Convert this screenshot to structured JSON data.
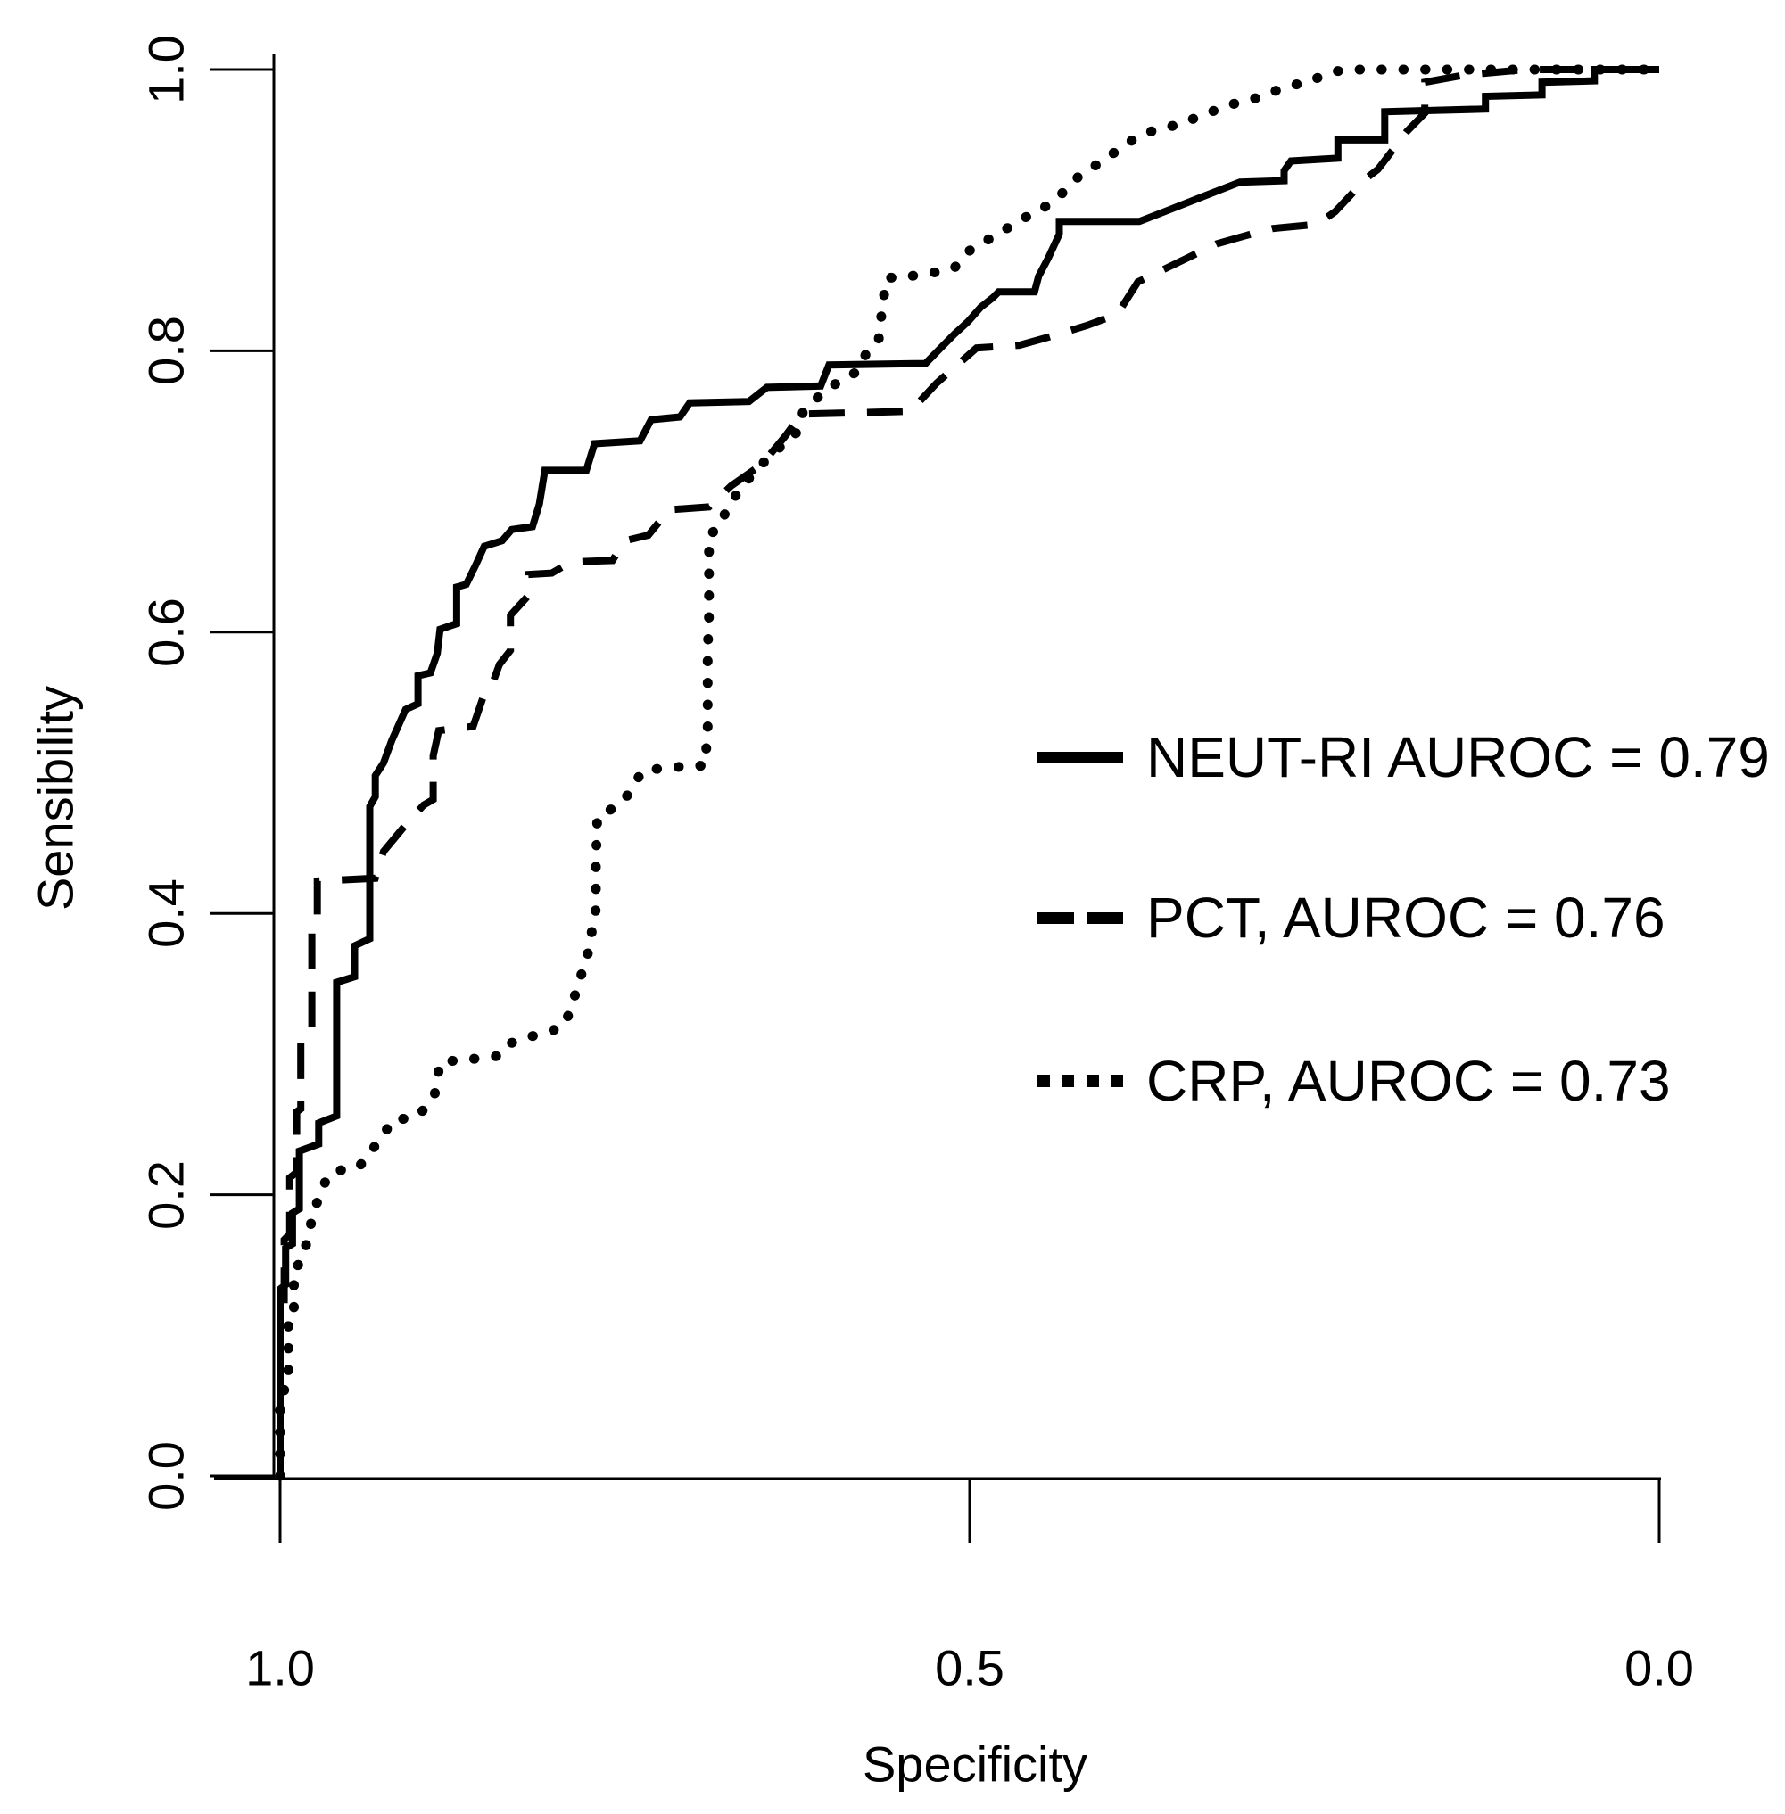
{
  "figure": {
    "background_color": "#ffffff",
    "ink_color": "#000000"
  },
  "axes": {
    "x_label": "Specificity",
    "y_label": "Sensibility",
    "x_tick_labels": [
      "1.0",
      "0.5",
      "0.0"
    ],
    "y_tick_labels": [
      "0.0",
      "0.2",
      "0.4",
      "0.6",
      "0.8",
      "1.0"
    ]
  },
  "legend": {
    "items": [
      {
        "series": "NEUT-RI",
        "label": "NEUT-RI AUROC = 0.79",
        "line_style": "solid"
      },
      {
        "series": "PCT",
        "label": "PCT, AUROC = 0.76",
        "line_style": "dashed"
      },
      {
        "series": "CRP",
        "label": "CRP, AUROC = 0.73",
        "line_style": "dotted"
      }
    ]
  },
  "chart_data": {
    "type": "line",
    "subtype": "roc-curves",
    "title": "",
    "xlabel": "Specificity",
    "ylabel": "Sensibility",
    "x_axis": {
      "range": [
        1.0,
        0.0
      ],
      "ticks": [
        1.0,
        0.5,
        0.0
      ],
      "direction": "reversed"
    },
    "y_axis": {
      "range": [
        0.0,
        1.0
      ],
      "ticks": [
        0.0,
        0.2,
        0.4,
        0.6,
        0.8,
        1.0
      ]
    },
    "grid": false,
    "legend_position": "center-right",
    "series": [
      {
        "name": "NEUT-RI",
        "auroc": 0.79,
        "legend_label": "NEUT-RI AUROC = 0.79",
        "line_style": "solid",
        "points": [
          [
            1,
            0
          ],
          [
            1,
            0.133
          ],
          [
            0.996,
            0.136
          ],
          [
            0.996,
            0.162
          ],
          [
            0.991,
            0.165
          ],
          [
            0.991,
            0.187
          ],
          [
            0.986,
            0.19
          ],
          [
            0.986,
            0.231
          ],
          [
            0.972,
            0.236
          ],
          [
            0.972,
            0.251
          ],
          [
            0.959,
            0.256
          ],
          [
            0.959,
            0.351
          ],
          [
            0.946,
            0.355
          ],
          [
            0.946,
            0.377
          ],
          [
            0.935,
            0.382
          ],
          [
            0.935,
            0.476
          ],
          [
            0.931,
            0.483
          ],
          [
            0.931,
            0.498
          ],
          [
            0.925,
            0.507
          ],
          [
            0.919,
            0.523
          ],
          [
            0.909,
            0.545
          ],
          [
            0.9,
            0.549
          ],
          [
            0.9,
            0.569
          ],
          [
            0.891,
            0.571
          ],
          [
            0.886,
            0.585
          ],
          [
            0.884,
            0.602
          ],
          [
            0.872,
            0.606
          ],
          [
            0.872,
            0.632
          ],
          [
            0.865,
            0.634
          ],
          [
            0.858,
            0.648
          ],
          [
            0.852,
            0.661
          ],
          [
            0.839,
            0.665
          ],
          [
            0.832,
            0.673
          ],
          [
            0.817,
            0.675
          ],
          [
            0.812,
            0.691
          ],
          [
            0.808,
            0.715
          ],
          [
            0.778,
            0.715
          ],
          [
            0.772,
            0.734
          ],
          [
            0.739,
            0.736
          ],
          [
            0.731,
            0.751
          ],
          [
            0.71,
            0.753
          ],
          [
            0.703,
            0.763
          ],
          [
            0.66,
            0.764
          ],
          [
            0.647,
            0.774
          ],
          [
            0.608,
            0.775
          ],
          [
            0.602,
            0.79
          ],
          [
            0.532,
            0.791
          ],
          [
            0.521,
            0.802
          ],
          [
            0.511,
            0.812
          ],
          [
            0.501,
            0.821
          ],
          [
            0.492,
            0.831
          ],
          [
            0.483,
            0.838
          ],
          [
            0.479,
            0.842
          ],
          [
            0.453,
            0.842
          ],
          [
            0.45,
            0.853
          ],
          [
            0.443,
            0.866
          ],
          [
            0.435,
            0.883
          ],
          [
            0.435,
            0.892
          ],
          [
            0.377,
            0.892
          ],
          [
            0.356,
            0.9
          ],
          [
            0.33,
            0.91
          ],
          [
            0.304,
            0.92
          ],
          [
            0.272,
            0.921
          ],
          [
            0.272,
            0.928
          ],
          [
            0.267,
            0.935
          ],
          [
            0.233,
            0.937
          ],
          [
            0.233,
            0.95
          ],
          [
            0.199,
            0.95
          ],
          [
            0.199,
            0.97
          ],
          [
            0.126,
            0.972
          ],
          [
            0.126,
            0.981
          ],
          [
            0.085,
            0.982
          ],
          [
            0.085,
            0.991
          ],
          [
            0.047,
            0.992
          ],
          [
            0.047,
            1
          ],
          [
            0,
            1
          ]
        ]
      },
      {
        "name": "PCT",
        "auroc": 0.76,
        "legend_label": "PCT, AUROC = 0.76",
        "line_style": "dashed",
        "points": [
          [
            1,
            0
          ],
          [
            1,
            0.117
          ],
          [
            0.997,
            0.122
          ],
          [
            0.997,
            0.168
          ],
          [
            0.993,
            0.172
          ],
          [
            0.993,
            0.212
          ],
          [
            0.988,
            0.216
          ],
          [
            0.988,
            0.259
          ],
          [
            0.985,
            0.261
          ],
          [
            0.985,
            0.314
          ],
          [
            0.977,
            0.319
          ],
          [
            0.977,
            0.394
          ],
          [
            0.973,
            0.396
          ],
          [
            0.973,
            0.423
          ],
          [
            0.931,
            0.425
          ],
          [
            0.925,
            0.444
          ],
          [
            0.909,
            0.463
          ],
          [
            0.896,
            0.477
          ],
          [
            0.889,
            0.481
          ],
          [
            0.889,
            0.512
          ],
          [
            0.885,
            0.53
          ],
          [
            0.86,
            0.533
          ],
          [
            0.852,
            0.556
          ],
          [
            0.845,
            0.566
          ],
          [
            0.841,
            0.577
          ],
          [
            0.833,
            0.587
          ],
          [
            0.833,
            0.612
          ],
          [
            0.82,
            0.626
          ],
          [
            0.82,
            0.641
          ],
          [
            0.803,
            0.642
          ],
          [
            0.789,
            0.65
          ],
          [
            0.759,
            0.651
          ],
          [
            0.75,
            0.665
          ],
          [
            0.733,
            0.669
          ],
          [
            0.718,
            0.687
          ],
          [
            0.689,
            0.689
          ],
          [
            0.673,
            0.704
          ],
          [
            0.651,
            0.719
          ],
          [
            0.634,
            0.739
          ],
          [
            0.622,
            0.755
          ],
          [
            0.543,
            0.757
          ],
          [
            0.524,
            0.777
          ],
          [
            0.495,
            0.802
          ],
          [
            0.464,
            0.804
          ],
          [
            0.442,
            0.81
          ],
          [
            0.415,
            0.818
          ],
          [
            0.393,
            0.826
          ],
          [
            0.378,
            0.849
          ],
          [
            0.321,
            0.876
          ],
          [
            0.296,
            0.883
          ],
          [
            0.28,
            0.887
          ],
          [
            0.248,
            0.89
          ],
          [
            0.235,
            0.899
          ],
          [
            0.212,
            0.923
          ],
          [
            0.204,
            0.929
          ],
          [
            0.183,
            0.956
          ],
          [
            0.17,
            0.969
          ],
          [
            0.17,
            0.991
          ],
          [
            0.142,
            0.996
          ],
          [
            0.097,
            1
          ],
          [
            0,
            1
          ]
        ]
      },
      {
        "name": "CRP",
        "auroc": 0.73,
        "legend_label": "CRP, AUROC = 0.73",
        "line_style": "dotted",
        "points": [
          [
            1,
            0
          ],
          [
            1,
            0.048
          ],
          [
            0.997,
            0.051
          ],
          [
            0.997,
            0.07
          ],
          [
            0.994,
            0.073
          ],
          [
            0.994,
            0.111
          ],
          [
            0.99,
            0.114
          ],
          [
            0.99,
            0.147
          ],
          [
            0.985,
            0.152
          ],
          [
            0.98,
            0.168
          ],
          [
            0.976,
            0.187
          ],
          [
            0.97,
            0.203
          ],
          [
            0.965,
            0.214
          ],
          [
            0.959,
            0.217
          ],
          [
            0.944,
            0.219
          ],
          [
            0.938,
            0.225
          ],
          [
            0.931,
            0.235
          ],
          [
            0.924,
            0.244
          ],
          [
            0.919,
            0.253
          ],
          [
            0.902,
            0.255
          ],
          [
            0.893,
            0.263
          ],
          [
            0.888,
            0.271
          ],
          [
            0.884,
            0.294
          ],
          [
            0.869,
            0.296
          ],
          [
            0.854,
            0.297
          ],
          [
            0.84,
            0.299
          ],
          [
            0.832,
            0.308
          ],
          [
            0.821,
            0.312
          ],
          [
            0.811,
            0.314
          ],
          [
            0.802,
            0.317
          ],
          [
            0.794,
            0.32
          ],
          [
            0.789,
            0.333
          ],
          [
            0.783,
            0.352
          ],
          [
            0.777,
            0.371
          ],
          [
            0.774,
            0.387
          ],
          [
            0.771,
            0.403
          ],
          [
            0.771,
            0.436
          ],
          [
            0.77,
            0.469
          ],
          [
            0.76,
            0.474
          ],
          [
            0.75,
            0.481
          ],
          [
            0.743,
            0.493
          ],
          [
            0.736,
            0.502
          ],
          [
            0.724,
            0.503
          ],
          [
            0.713,
            0.504
          ],
          [
            0.702,
            0.505
          ],
          [
            0.692,
            0.505
          ],
          [
            0.69,
            0.53
          ],
          [
            0.69,
            0.558
          ],
          [
            0.69,
            0.587
          ],
          [
            0.689,
            0.612
          ],
          [
            0.689,
            0.639
          ],
          [
            0.689,
            0.669
          ],
          [
            0.681,
            0.675
          ],
          [
            0.676,
            0.688
          ],
          [
            0.669,
            0.698
          ],
          [
            0.664,
            0.704
          ],
          [
            0.658,
            0.712
          ],
          [
            0.651,
            0.719
          ],
          [
            0.645,
            0.725
          ],
          [
            0.638,
            0.731
          ],
          [
            0.631,
            0.739
          ],
          [
            0.625,
            0.742
          ],
          [
            0.621,
            0.756
          ],
          [
            0.614,
            0.764
          ],
          [
            0.606,
            0.77
          ],
          [
            0.598,
            0.776
          ],
          [
            0.591,
            0.78
          ],
          [
            0.582,
            0.785
          ],
          [
            0.574,
            0.8
          ],
          [
            0.566,
            0.808
          ],
          [
            0.563,
            0.834
          ],
          [
            0.56,
            0.852
          ],
          [
            0.55,
            0.852
          ],
          [
            0.537,
            0.854
          ],
          [
            0.524,
            0.856
          ],
          [
            0.511,
            0.859
          ],
          [
            0.505,
            0.867
          ],
          [
            0.498,
            0.873
          ],
          [
            0.492,
            0.876
          ],
          [
            0.485,
            0.88
          ],
          [
            0.475,
            0.886
          ],
          [
            0.466,
            0.891
          ],
          [
            0.456,
            0.897
          ],
          [
            0.446,
            0.902
          ],
          [
            0.437,
            0.908
          ],
          [
            0.42,
            0.925
          ],
          [
            0.413,
            0.929
          ],
          [
            0.404,
            0.935
          ],
          [
            0.395,
            0.941
          ],
          [
            0.385,
            0.948
          ],
          [
            0.375,
            0.954
          ],
          [
            0.365,
            0.957
          ],
          [
            0.356,
            0.959
          ],
          [
            0.343,
            0.963
          ],
          [
            0.33,
            0.968
          ],
          [
            0.317,
            0.973
          ],
          [
            0.304,
            0.977
          ],
          [
            0.291,
            0.98
          ],
          [
            0.278,
            0.985
          ],
          [
            0.265,
            0.989
          ],
          [
            0.252,
            0.992
          ],
          [
            0.244,
            0.996
          ],
          [
            0.233,
            0.999
          ],
          [
            0.22,
            1
          ],
          [
            0,
            1
          ]
        ]
      }
    ]
  }
}
